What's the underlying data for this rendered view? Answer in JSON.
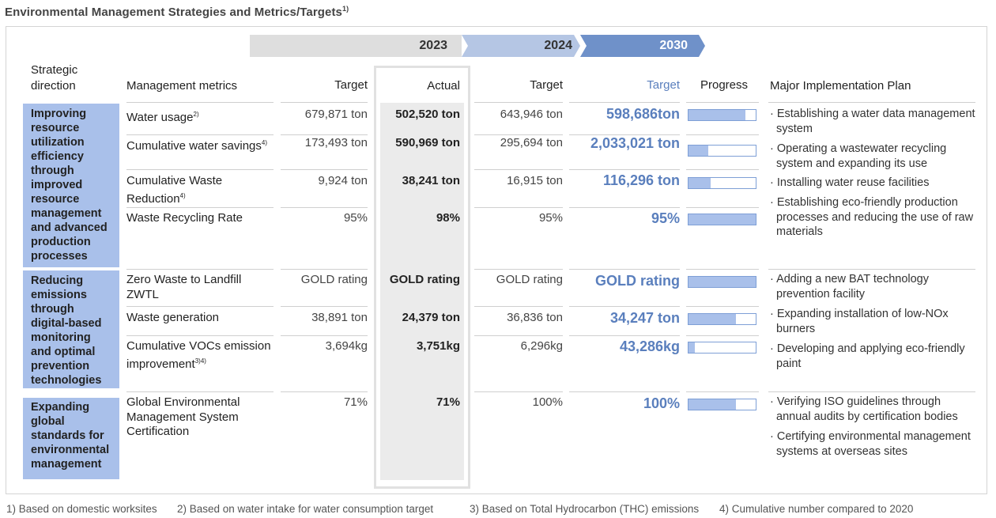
{
  "title": "Environmental Management Strategies and Metrics/Targets",
  "title_note": "1)",
  "years": {
    "y2023": "2023",
    "y2024": "2024",
    "y2030": "2030"
  },
  "headers": {
    "strategic_direction": "Strategic direction",
    "management_metrics": "Management metrics",
    "target_2023": "Target",
    "actual_2023": "Actual",
    "target_2024": "Target",
    "target_2030": "Target",
    "progress": "Progress",
    "plan": "Major Implementation Plan"
  },
  "directions": [
    "Improving resource utilization efficiency through improved resource management and advanced production processes",
    "Reducing emissions through digital-based monitoring and optimal prevention technologies",
    "Expanding global standards for environmental management"
  ],
  "rows": [
    {
      "metric": "Water usage",
      "note": "2)",
      "t2023": "679,871 ton",
      "a2023": "502,520 ton",
      "t2024": "643,946 ton",
      "t2030": "598,686ton",
      "progress": 0.85
    },
    {
      "metric": "Cumulative water savings",
      "note": "4)",
      "t2023": "173,493 ton",
      "a2023": "590,969 ton",
      "t2024": "295,694 ton",
      "t2030": "2,033,021 ton",
      "progress": 0.29
    },
    {
      "metric": "Cumulative Waste Reduction",
      "note": "4)",
      "t2023": "9,924 ton",
      "a2023": "38,241 ton",
      "t2024": "16,915 ton",
      "t2030": "116,296 ton",
      "progress": 0.33
    },
    {
      "metric": "Waste Recycling Rate",
      "note": "",
      "t2023": "95%",
      "a2023": "98%",
      "t2024": "95%",
      "t2030": "95%",
      "progress": 1.0
    },
    {
      "metric": "Zero Waste to Landfill ZWTL",
      "note": "",
      "t2023": "GOLD rating",
      "a2023": "GOLD rating",
      "t2024": "GOLD rating",
      "t2030": "GOLD rating",
      "progress": 1.0
    },
    {
      "metric": "Waste generation",
      "note": "",
      "t2023": "38,891 ton",
      "a2023": "24,379 ton",
      "t2024": "36,836 ton",
      "t2030": "34,247 ton",
      "progress": 0.71
    },
    {
      "metric": "Cumulative VOCs emission improvement",
      "note": "3)4)",
      "t2023": "3,694kg",
      "a2023": "3,751kg",
      "t2024": "6,296kg",
      "t2030": "43,286kg",
      "progress": 0.09
    },
    {
      "metric": "Global Environmental Management System Certification",
      "note": "",
      "t2023": "71%",
      "a2023": "71%",
      "t2024": "100%",
      "t2030": "100%",
      "progress": 0.71
    }
  ],
  "plans": [
    "Establishing a water data management system",
    "Operating a wastewater recycling system and expanding its use",
    "Installing water reuse facilities",
    "Establishing eco-friendly production processes and reducing the use of raw materials",
    "Adding a new BAT technology prevention facility",
    "Expanding installation of low-NOx burners",
    "Developing and applying eco-friendly paint",
    "Verifying ISO guidelines through annual audits by certification bodies",
    "Certifying environmental management systems at overseas sites"
  ],
  "footnotes": [
    "1) Based on domestic worksites",
    "2) Based on water intake for water consumption target",
    "3) Based on Total Hydrocarbon (THC) emissions",
    "4) Cumulative number compared to 2020"
  ]
}
